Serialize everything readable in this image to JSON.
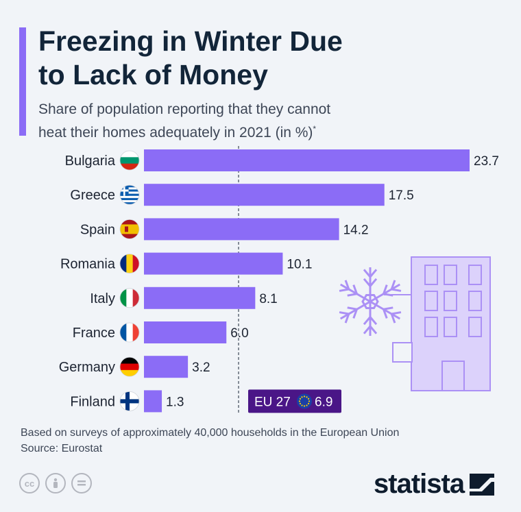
{
  "header": {
    "title_line1": "Freezing in Winter Due",
    "title_line2": "to Lack of Money",
    "subtitle_line1": "Share of population reporting that they cannot",
    "subtitle_line2": "heat their homes adequately in 2021 (in %)",
    "subtitle_mark": "*"
  },
  "colors": {
    "bar": "#8b6cf6",
    "eu_badge": "#4a1687",
    "illustration": "#ab90f5"
  },
  "chart_data": {
    "type": "bar",
    "orientation": "horizontal",
    "categories": [
      "Bulgaria",
      "Greece",
      "Spain",
      "Romania",
      "Italy",
      "France",
      "Germany",
      "Finland"
    ],
    "values": [
      23.7,
      17.5,
      14.2,
      10.1,
      8.1,
      6.0,
      3.2,
      1.3
    ],
    "value_labels": [
      "23.7",
      "17.5",
      "14.2",
      "10.1",
      "8.1",
      "6.0",
      "3.2",
      "1.3"
    ],
    "flags": [
      "bulgaria-flag",
      "greece-flag",
      "spain-flag",
      "romania-flag",
      "italy-flag",
      "france-flag",
      "germany-flag",
      "finland-flag"
    ],
    "reference": {
      "label": "EU 27",
      "value": 6.9,
      "value_label": "6.9",
      "icon": "eu-flag-icon"
    },
    "xlim": [
      0,
      23.7
    ],
    "grid": false
  },
  "footer": {
    "note": "Based on surveys of approximately 40,000 households in the European Union",
    "source": "Source: Eurostat",
    "brand": "statista",
    "license_icons": [
      "creative-commons-icon",
      "attribution-icon",
      "no-derivatives-icon"
    ]
  }
}
